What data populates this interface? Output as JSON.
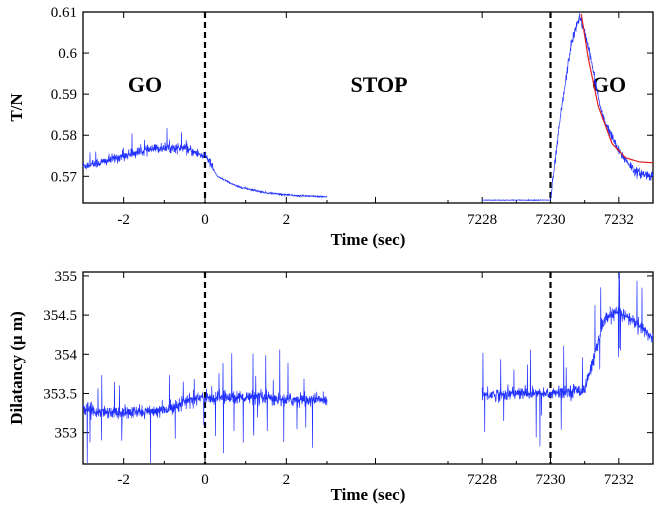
{
  "chart_data": [
    {
      "type": "line",
      "xlabel": "Time (sec)",
      "ylabel": "T/N",
      "ylim": [
        0.5635,
        0.61
      ],
      "yticks": [
        "0.57",
        "0.58",
        "0.59",
        "0.6",
        "0.61"
      ],
      "xticks": [
        "-2",
        "0",
        "2",
        "7228",
        "7230",
        "7232"
      ],
      "x_segments": [
        {
          "from": -3,
          "to": 3
        },
        {
          "from": 7227,
          "to": 7233
        }
      ],
      "event_lines_at": [
        0,
        7230
      ],
      "annotations": [
        "GO",
        "STOP",
        "GO"
      ],
      "series": [
        {
          "color": "#2030ff",
          "description_points": [
            {
              "x": -3.0,
              "y": 0.5725
            },
            {
              "x": -2.5,
              "y": 0.5735
            },
            {
              "x": -2.0,
              "y": 0.575
            },
            {
              "x": -1.5,
              "y": 0.5762
            },
            {
              "x": -1.0,
              "y": 0.577
            },
            {
              "x": -0.5,
              "y": 0.5768
            },
            {
              "x": -0.05,
              "y": 0.575
            },
            {
              "x": 0.0,
              "y": 0.5755
            },
            {
              "x": 0.3,
              "y": 0.57
            },
            {
              "x": 0.8,
              "y": 0.5675
            },
            {
              "x": 1.5,
              "y": 0.566
            },
            {
              "x": 2.2,
              "y": 0.5653
            },
            {
              "x": 3.0,
              "y": 0.565
            },
            {
              "x": 7228.0,
              "y": 0.5642
            },
            {
              "x": 7230.0,
              "y": 0.5642
            },
            {
              "x": 7230.3,
              "y": 0.585
            },
            {
              "x": 7230.6,
              "y": 0.602
            },
            {
              "x": 7230.85,
              "y": 0.609
            },
            {
              "x": 7231.1,
              "y": 0.602
            },
            {
              "x": 7231.5,
              "y": 0.585
            },
            {
              "x": 7232.0,
              "y": 0.576
            },
            {
              "x": 7232.5,
              "y": 0.571
            },
            {
              "x": 7233.0,
              "y": 0.57
            }
          ]
        },
        {
          "color": "#e02020",
          "description_points": [
            {
              "x": 7230.9,
              "y": 0.6095
            },
            {
              "x": 7231.1,
              "y": 0.599
            },
            {
              "x": 7231.4,
              "y": 0.587
            },
            {
              "x": 7231.8,
              "y": 0.578
            },
            {
              "x": 7232.2,
              "y": 0.5745
            },
            {
              "x": 7232.6,
              "y": 0.5735
            },
            {
              "x": 7233.0,
              "y": 0.5733
            }
          ]
        }
      ]
    },
    {
      "type": "line",
      "xlabel": "Time (sec)",
      "ylabel": "Dilatancy (μ m)",
      "ylim": [
        352.6,
        355.05
      ],
      "yticks": [
        "353",
        "353.5",
        "354",
        "354.5",
        "355"
      ],
      "xticks": [
        "-2",
        "0",
        "2",
        "7228",
        "7230",
        "7232"
      ],
      "x_segments": [
        {
          "from": -3,
          "to": 3
        },
        {
          "from": 7227,
          "to": 7233
        }
      ],
      "event_lines_at": [
        0,
        7230
      ],
      "series": [
        {
          "color": "#2030ff",
          "description_points": [
            {
              "x": -3.0,
              "y": 353.3
            },
            {
              "x": -2.0,
              "y": 353.25
            },
            {
              "x": -1.0,
              "y": 353.28
            },
            {
              "x": -0.5,
              "y": 353.4
            },
            {
              "x": 0.0,
              "y": 353.45
            },
            {
              "x": 1.0,
              "y": 353.45
            },
            {
              "x": 2.0,
              "y": 353.42
            },
            {
              "x": 3.0,
              "y": 353.42
            },
            {
              "x": 7228.0,
              "y": 353.48
            },
            {
              "x": 7229.0,
              "y": 353.5
            },
            {
              "x": 7230.0,
              "y": 353.5
            },
            {
              "x": 7231.0,
              "y": 353.55
            },
            {
              "x": 7231.3,
              "y": 354.0
            },
            {
              "x": 7231.6,
              "y": 354.45
            },
            {
              "x": 7232.0,
              "y": 354.55
            },
            {
              "x": 7232.5,
              "y": 354.4
            },
            {
              "x": 7233.0,
              "y": 354.2
            }
          ]
        }
      ]
    }
  ]
}
